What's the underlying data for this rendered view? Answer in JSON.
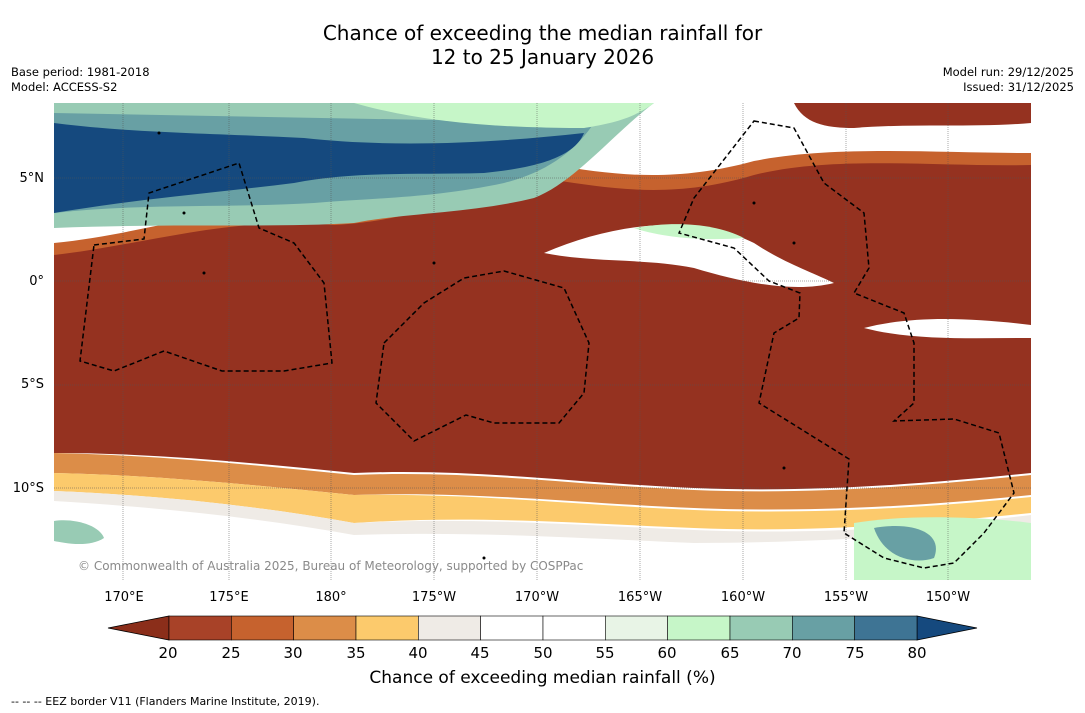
{
  "title": {
    "line1": "Chance of exceeding the median rainfall for",
    "line2": "12 to 25 January 2026"
  },
  "meta": {
    "base_period": "Base period: 1981-2018",
    "model": "Model: ACCESS-S2",
    "model_run": "Model run: 29/12/2025",
    "issued": "Issued: 31/12/2025"
  },
  "map": {
    "lat_labels": [
      "5°N",
      "0°",
      "5°S",
      "10°S"
    ],
    "lon_labels": [
      "170°E",
      "175°E",
      "180°",
      "175°W",
      "170°W",
      "165°W",
      "160°W",
      "155°W",
      "150°W"
    ],
    "copyright": "© Commonwealth of Australia 2025, Bureau of Meteorology, supported by COSPPac"
  },
  "colorbar": {
    "title": "Chance of exceeding median rainfall (%)",
    "ticks": [
      "20",
      "25",
      "30",
      "35",
      "40",
      "45",
      "50",
      "55",
      "60",
      "65",
      "70",
      "75",
      "80"
    ],
    "colors": {
      "under": "#8b2e1a",
      "c20_25": "#a84228",
      "c25_30": "#c6622e",
      "c30_35": "#dc8d48",
      "c35_40": "#fcca6c",
      "c40_45": "#efebe6",
      "c45_50": "#ffffff",
      "c50_55": "#ffffff",
      "c55_60": "#e8f4e6",
      "c60_65": "#c6f6c8",
      "c65_70": "#98cbb4",
      "c70_75": "#68a0a4",
      "c75_80": "#3e7494",
      "over": "#15497e",
      "dry": "#953220"
    }
  },
  "footnote": "--  --  -- EEZ border V11 (Flanders Marine Institute, 2019)."
}
